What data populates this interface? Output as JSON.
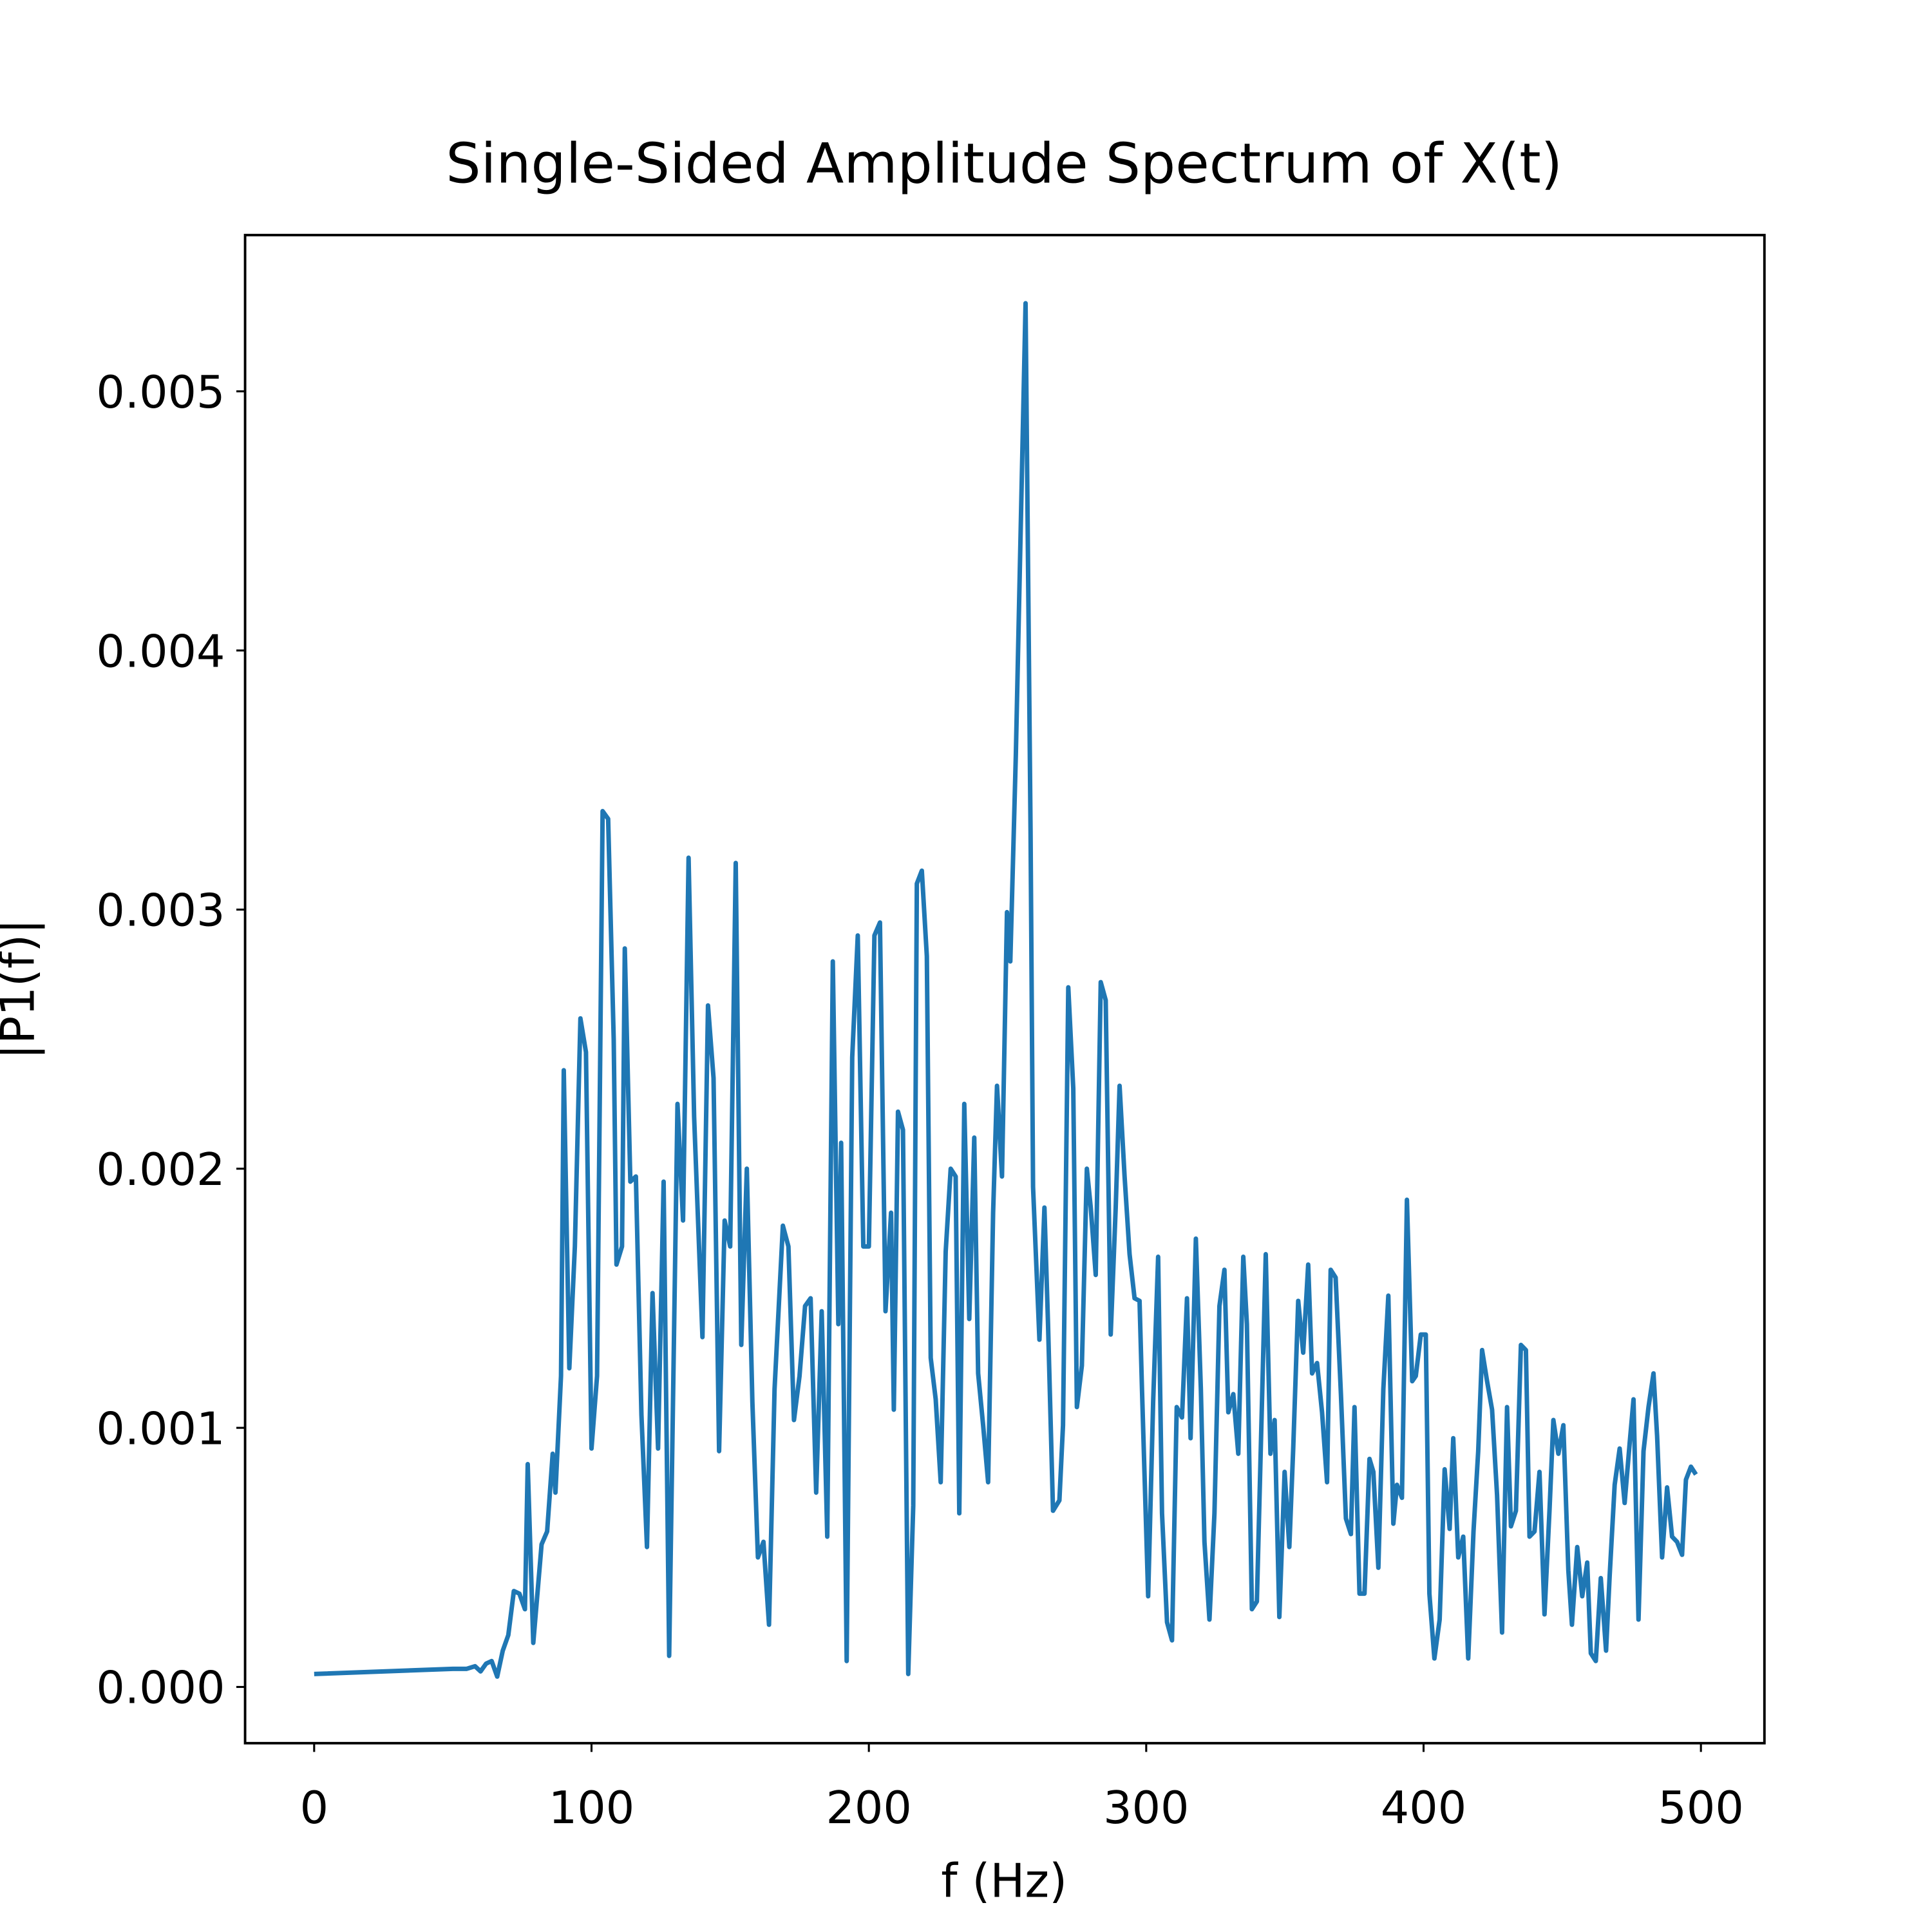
{
  "chart_data": {
    "type": "line",
    "title": "Single-Sided Amplitude Spectrum of X(t)",
    "x_label": "f (Hz)",
    "y_label": "|P1(f)|",
    "x": [
      0,
      50,
      55,
      58,
      60,
      62,
      64,
      66,
      68,
      70,
      72,
      74,
      76,
      77,
      79,
      82,
      84,
      86,
      87,
      89,
      90,
      92,
      94,
      96,
      98,
      100,
      102,
      104,
      106,
      108,
      109,
      111,
      112,
      114,
      116,
      118,
      120,
      122,
      124,
      126,
      128,
      131,
      133,
      135,
      137,
      140,
      142,
      144,
      146,
      148,
      150,
      152,
      154,
      156,
      158,
      160,
      162,
      164,
      166,
      169,
      171,
      173,
      175,
      177,
      179,
      181,
      183,
      185,
      187,
      189,
      190,
      192,
      194,
      196,
      198,
      200,
      202,
      204,
      206,
      208,
      209,
      210.5,
      212.3,
      214.2,
      216,
      217.3,
      219.1,
      220.9,
      222.3,
      224.1,
      225.9,
      227.7,
      229.5,
      231.3,
      232.6,
      234.4,
      236.2,
      238,
      239.4,
      241.2,
      243,
      244.8,
      246.2,
      248,
      249.8,
      251,
      253,
      256.5,
      258.3,
      259.2,
      261.5,
      263.3,
      264.6,
      266.4,
      268.7,
      270,
      271.9,
      273.7,
      275,
      276.8,
      278.6,
      280,
      281.8,
      283.6,
      285.4,
      287.2,
      289,
      290.4,
      292.2,
      294,
      295.8,
      297.6,
      298.5,
      300.7,
      302.5,
      304.3,
      305.7,
      307.5,
      309.3,
      311,
      312.9,
      314.7,
      316,
      317.9,
      319.7,
      321,
      322.8,
      324.6,
      326.4,
      328.2,
      329.6,
      331.4,
      333.2,
      335,
      336.3,
      338.1,
      339.9,
      343.1,
      344.8,
      346.3,
      348,
      349.9,
      351.6,
      353,
      354.8,
      356.6,
      358.4,
      359.8,
      361.6,
      363.4,
      365.2,
      366.5,
      368.3,
      370.2,
      372,
      373.8,
      375.1,
      376.9,
      378.7,
      380.5,
      381.9,
      383.7,
      385.5,
      387.3,
      389.1,
      390.4,
      392.2,
      394,
      395.9,
      397.2,
      399,
      400.8,
      402.1,
      403.9,
      405.8,
      407.6,
      409.4,
      410.7,
      412.5,
      414.3,
      416.1,
      418,
      419.7,
      421.1,
      422.9,
      424.7,
      426.5,
      428.3,
      430.1,
      431.5,
      433.3,
      435.1,
      436.9,
      438.2,
      440,
      441.8,
      443.6,
      445.4,
      446.8,
      448.6,
      450.4,
      452.2,
      453.5,
      455.4,
      457.2,
      459,
      460.3,
      462.1,
      463.9,
      465.8,
      467.1,
      468.9,
      470.7,
      472.5,
      474.3,
      475.7,
      477.5,
      479.3,
      481.1,
      482.9,
      484.2,
      486,
      487.8,
      489.6,
      491.4,
      493.2,
      494.6,
      496.4,
      498.2
    ],
    "series": [
      {
        "color": "#1f77b4",
        "values": [
          5e-05,
          7e-05,
          7e-05,
          8e-05,
          6e-05,
          9e-05,
          0.0001,
          4e-05,
          0.00014,
          0.0002,
          0.00037,
          0.00036,
          0.0003,
          0.00086,
          0.00017,
          0.00055,
          0.0006,
          0.0009,
          0.00075,
          0.0012,
          0.00238,
          0.00123,
          0.0017,
          0.00258,
          0.00245,
          0.00092,
          0.0012,
          0.00338,
          0.00335,
          0.0025,
          0.00163,
          0.0017,
          0.00285,
          0.00195,
          0.00197,
          0.00105,
          0.00054,
          0.00152,
          0.00092,
          0.00195,
          0.00012,
          0.00225,
          0.0018,
          0.0032,
          0.0022,
          0.00135,
          0.00263,
          0.00235,
          0.00091,
          0.0018,
          0.0017,
          0.00318,
          0.00132,
          0.002,
          0.0011,
          0.0005,
          0.00056,
          0.00024,
          0.00115,
          0.00178,
          0.0017,
          0.00103,
          0.0012,
          0.00147,
          0.0015,
          0.00075,
          0.00145,
          0.00058,
          0.0028,
          0.0014,
          0.0021,
          0.0001,
          0.00243,
          0.0029,
          0.0017,
          0.0017,
          0.0029,
          0.00295,
          0.00145,
          0.00183,
          0.00107,
          0.00222,
          0.00215,
          5e-05,
          0.0007,
          0.0031,
          0.00315,
          0.00282,
          0.00127,
          0.00111,
          0.00079,
          0.00168,
          0.002,
          0.00197,
          0.00067,
          0.00225,
          0.00142,
          0.00212,
          0.00121,
          0.00101,
          0.00079,
          0.00183,
          0.00232,
          0.00197,
          0.00299,
          0.0028,
          0.0036,
          0.00534,
          0.0033,
          0.00193,
          0.00134,
          0.00185,
          0.0014,
          0.00068,
          0.00072,
          0.00101,
          0.0027,
          0.00231,
          0.00108,
          0.00124,
          0.002,
          0.00185,
          0.00159,
          0.00272,
          0.00265,
          0.00136,
          0.00185,
          0.00232,
          0.00197,
          0.00167,
          0.0015,
          0.00149,
          0.00114,
          0.00035,
          0.0011,
          0.00166,
          0.00067,
          0.00025,
          0.00018,
          0.00108,
          0.00104,
          0.0015,
          0.00096,
          0.00173,
          0.00115,
          0.00056,
          0.00026,
          0.00067,
          0.00147,
          0.00161,
          0.00106,
          0.00113,
          0.0009,
          0.00166,
          0.0014,
          0.0003,
          0.00033,
          0.00167,
          0.0009,
          0.00103,
          0.00027,
          0.00083,
          0.00054,
          0.00092,
          0.00149,
          0.00129,
          0.00163,
          0.00121,
          0.00125,
          0.00106,
          0.00079,
          0.00161,
          0.00158,
          0.00113,
          0.00065,
          0.00059,
          0.00108,
          0.00036,
          0.00036,
          0.00088,
          0.00083,
          0.00046,
          0.00115,
          0.00151,
          0.00063,
          0.00078,
          0.00073,
          0.00188,
          0.00118,
          0.0012,
          0.00136,
          0.00136,
          0.00036,
          0.00011,
          0.00026,
          0.00084,
          0.00061,
          0.00096,
          0.0005,
          0.00058,
          0.00011,
          0.0006,
          0.00091,
          0.0013,
          0.00118,
          0.00107,
          0.00074,
          0.00021,
          0.00108,
          0.00062,
          0.00068,
          0.00132,
          0.0013,
          0.00058,
          0.0006,
          0.00083,
          0.00028,
          0.00068,
          0.00103,
          0.0009,
          0.00101,
          0.00045,
          0.00024,
          0.00054,
          0.00035,
          0.00048,
          0.00013,
          0.0001,
          0.00042,
          0.00014,
          0.00043,
          0.00078,
          0.00092,
          0.00071,
          0.00094,
          0.00111,
          0.00026,
          0.00091,
          0.00108,
          0.00121,
          0.00097,
          0.0005,
          0.00077,
          0.00058,
          0.00056,
          0.00051,
          0.0008,
          0.00085,
          0.00082
        ]
      }
    ],
    "xlim": [
      -24.9,
      522.9
    ],
    "ylim": [
      -0.000217,
      0.005603
    ],
    "xticks": [
      0,
      100,
      200,
      300,
      400,
      500
    ],
    "yticks": [
      {
        "value": 0,
        "label": "0.000"
      },
      0.001,
      0.002,
      0.003,
      0.004,
      0.005
    ]
  }
}
